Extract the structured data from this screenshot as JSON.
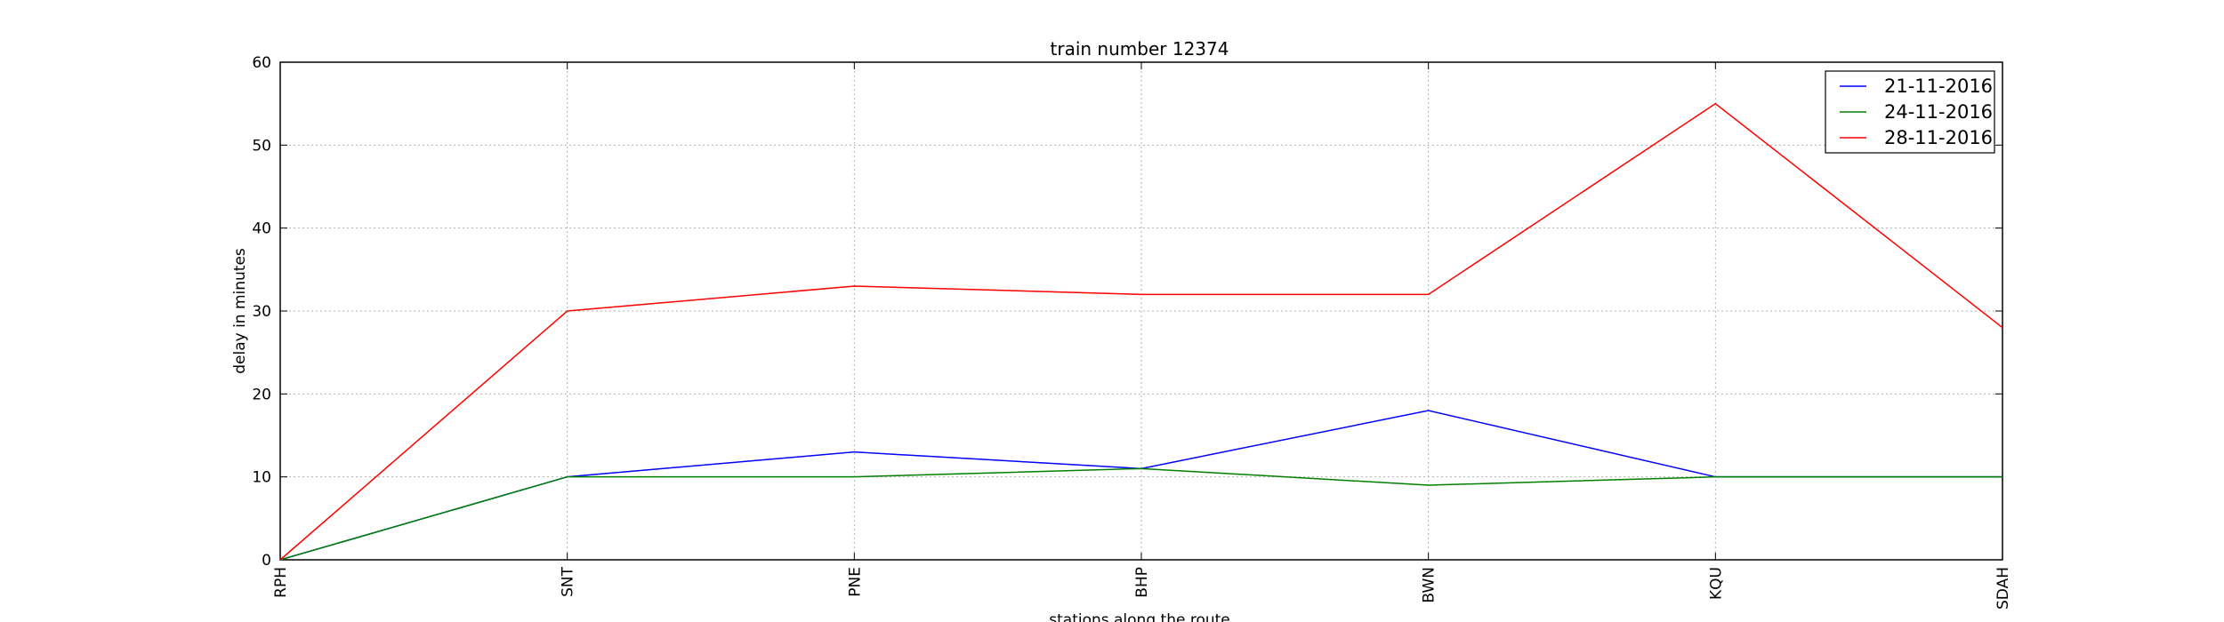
{
  "chart_data": {
    "type": "line",
    "title": "train number 12374",
    "xlabel": "stations along the route",
    "ylabel": "delay in minutes",
    "categories": [
      "RPH",
      "SNT",
      "PNE",
      "BHP",
      "BWN",
      "KQU",
      "SDAH"
    ],
    "yticks": [
      "0",
      "10",
      "20",
      "30",
      "40",
      "50",
      "60"
    ],
    "ylim": [
      0,
      60
    ],
    "grid": true,
    "legend_position": "top-right",
    "series": [
      {
        "name": "21-11-2016",
        "color": "#0000ff",
        "values": [
          0,
          10,
          13,
          11,
          18,
          10,
          10
        ]
      },
      {
        "name": "24-11-2016",
        "color": "#008000",
        "values": [
          0,
          10,
          10,
          11,
          9,
          10,
          10
        ]
      },
      {
        "name": "28-11-2016",
        "color": "#ff0000",
        "values": [
          0,
          30,
          33,
          32,
          32,
          55,
          28
        ]
      }
    ]
  }
}
